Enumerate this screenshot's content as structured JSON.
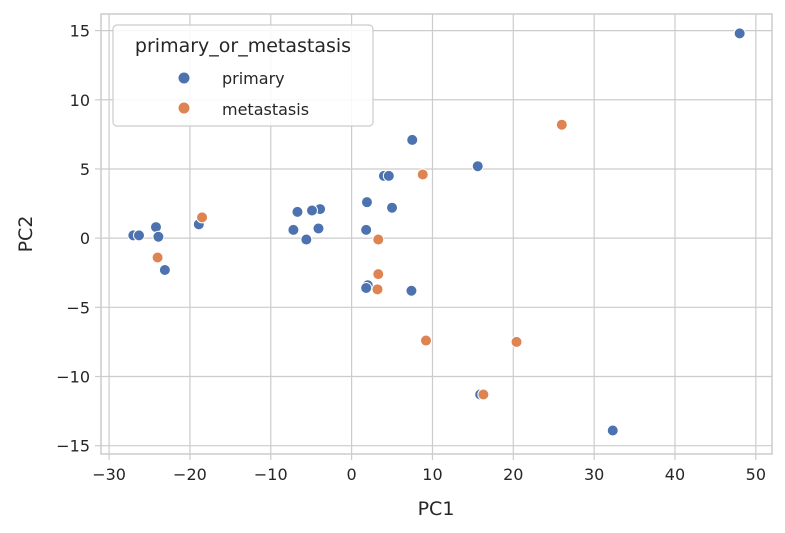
{
  "chart_data": {
    "type": "scatter",
    "xlabel": "PC1",
    "ylabel": "PC2",
    "xlim": [
      -31,
      52
    ],
    "ylim": [
      -15.6,
      16.2
    ],
    "xticks": [
      -30,
      -20,
      -10,
      0,
      10,
      20,
      30,
      40,
      50
    ],
    "yticks": [
      -15,
      -10,
      -5,
      0,
      5,
      10,
      15
    ],
    "grid": true,
    "legend": {
      "title": "primary_or_metastasis",
      "placement": "top-left"
    },
    "series": [
      {
        "name": "primary",
        "color": "#4c72b0",
        "points": [
          [
            48.0,
            14.8
          ],
          [
            7.5,
            7.1
          ],
          [
            15.6,
            5.2
          ],
          [
            4.0,
            4.5
          ],
          [
            4.6,
            4.5
          ],
          [
            1.9,
            2.6
          ],
          [
            5.0,
            2.2
          ],
          [
            -3.9,
            2.1
          ],
          [
            -4.9,
            2.0
          ],
          [
            -6.7,
            1.9
          ],
          [
            -18.9,
            1.0
          ],
          [
            -24.2,
            0.8
          ],
          [
            -4.1,
            0.7
          ],
          [
            -7.2,
            0.6
          ],
          [
            1.8,
            0.6
          ],
          [
            -27.0,
            0.2
          ],
          [
            -26.3,
            0.2
          ],
          [
            -23.9,
            0.1
          ],
          [
            -5.6,
            -0.1
          ],
          [
            -23.1,
            -2.3
          ],
          [
            2.0,
            -3.4
          ],
          [
            1.8,
            -3.6
          ],
          [
            7.4,
            -3.8
          ],
          [
            15.9,
            -11.3
          ],
          [
            32.3,
            -13.9
          ]
        ]
      },
      {
        "name": "metastasis",
        "color": "#dd8452",
        "points": [
          [
            26.0,
            8.2
          ],
          [
            8.8,
            4.6
          ],
          [
            -18.5,
            1.5
          ],
          [
            3.3,
            -0.1
          ],
          [
            -24.0,
            -1.4
          ],
          [
            3.3,
            -2.6
          ],
          [
            3.2,
            -3.7
          ],
          [
            9.2,
            -7.4
          ],
          [
            20.4,
            -7.5
          ],
          [
            16.3,
            -11.3
          ]
        ]
      }
    ]
  }
}
